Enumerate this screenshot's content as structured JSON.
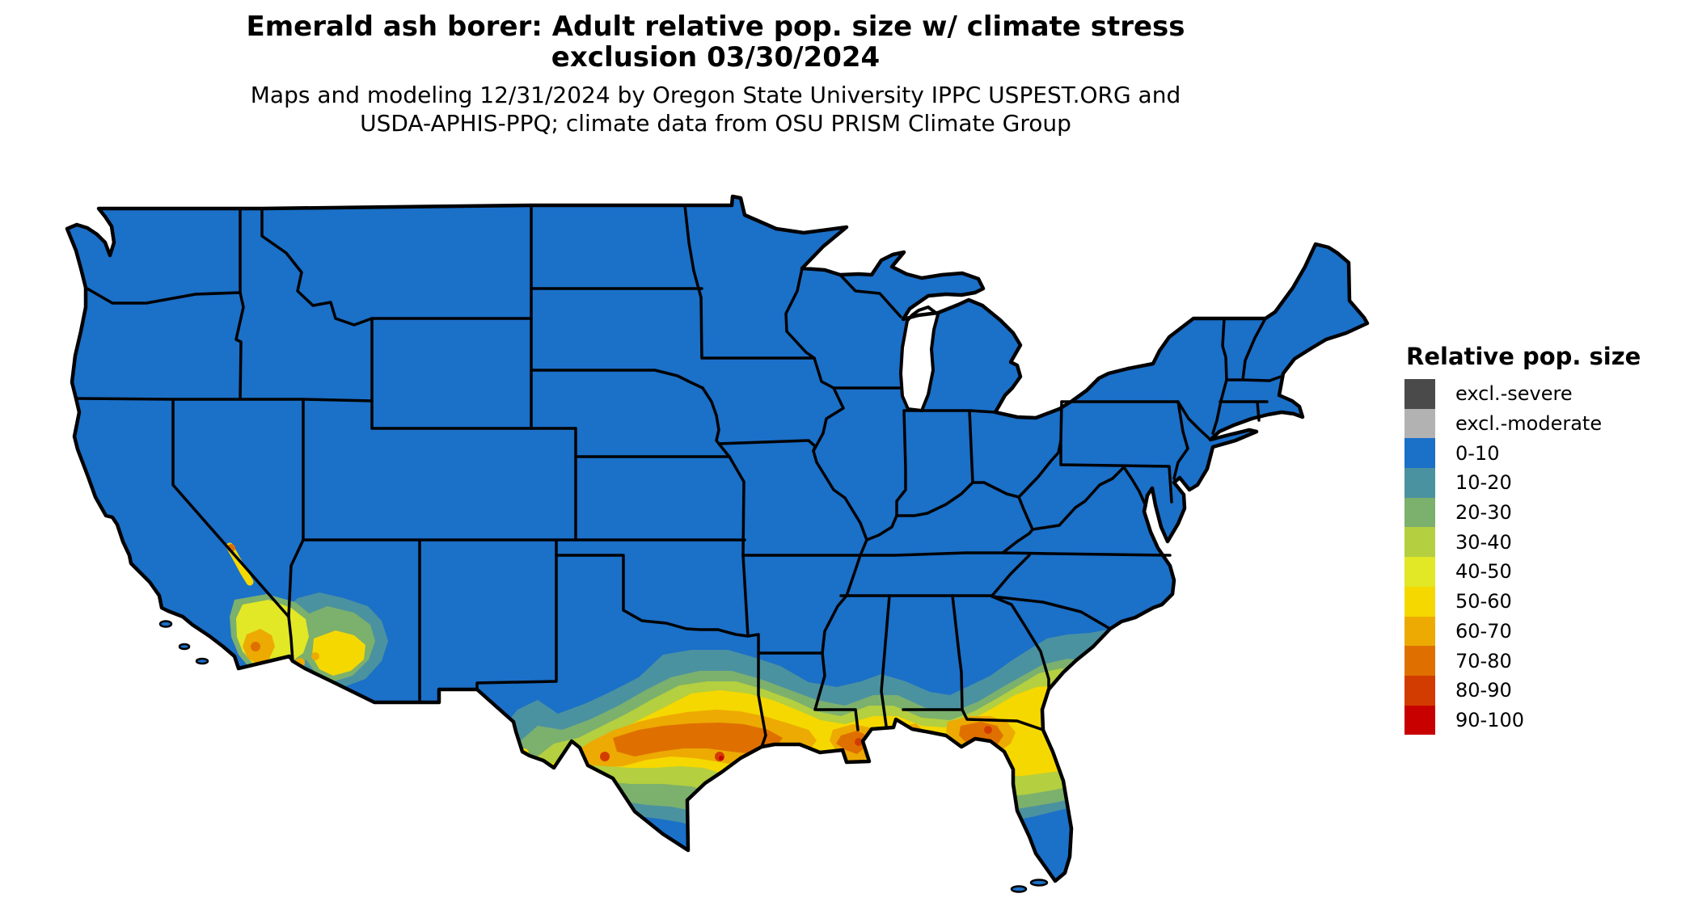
{
  "title": {
    "line1": "Emerald ash borer: Adult relative pop. size w/ climate stress",
    "line2": "exclusion 03/30/2024"
  },
  "subtitle": {
    "line1": "Maps and modeling 12/31/2024 by Oregon State University IPPC USPEST.ORG and",
    "line2": "USDA-APHIS-PPQ; climate data from OSU PRISM Climate Group"
  },
  "legend": {
    "title": "Relative pop. size",
    "items": [
      {
        "name": "excl-severe",
        "label": "excl.-severe",
        "color": "#4a4a4a"
      },
      {
        "name": "excl-moderate",
        "label": "excl.-moderate",
        "color": "#b2b2b2"
      },
      {
        "name": "range-0-10",
        "label": "0-10",
        "color": "#1b70c8"
      },
      {
        "name": "range-10-20",
        "label": "10-20",
        "color": "#4b92a0"
      },
      {
        "name": "range-20-30",
        "label": "20-30",
        "color": "#7cb06d"
      },
      {
        "name": "range-30-40",
        "label": "30-40",
        "color": "#b4cf3f"
      },
      {
        "name": "range-40-50",
        "label": "40-50",
        "color": "#e2e726"
      },
      {
        "name": "range-50-60",
        "label": "50-60",
        "color": "#f5d800"
      },
      {
        "name": "range-60-70",
        "label": "60-70",
        "color": "#edaa02"
      },
      {
        "name": "range-70-80",
        "label": "70-80",
        "color": "#df7000"
      },
      {
        "name": "range-80-90",
        "label": "80-90",
        "color": "#d33c00"
      },
      {
        "name": "range-90-100",
        "label": "90-100",
        "color": "#c80000"
      }
    ]
  },
  "map": {
    "region": "Continental United States",
    "base_fill": "#1b70c8",
    "border_color": "#000000",
    "water_color": "#ffffff",
    "background": "#ffffff",
    "hotspot_areas": "southern Texas through Gulf Coast to north Florida; southern Arizona and southeastern California"
  }
}
